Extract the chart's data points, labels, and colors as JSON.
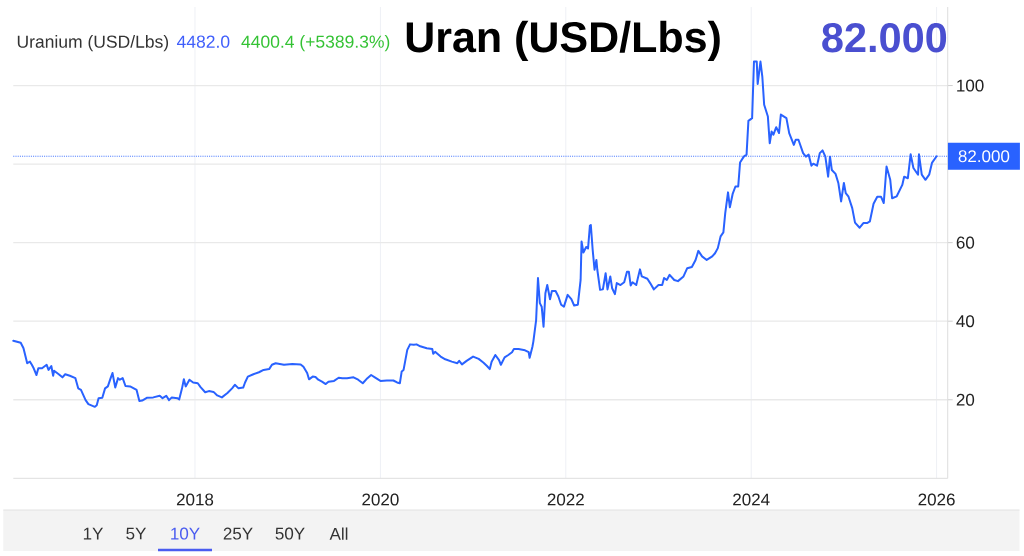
{
  "chart_data": {
    "type": "line",
    "title": "Uran (USD/Lbs)",
    "subtitle": "82.000",
    "annotations": [
      "Uranium (USD/Lbs)",
      "4482.0",
      "4400.4 (+5389.3%)",
      "1Y",
      "5Y",
      "10Y",
      "25Y",
      "50Y",
      "All"
    ],
    "x": [
      2016.04,
      2016.12,
      2016.15,
      2016.19,
      2016.22,
      2016.24,
      2016.26,
      2016.29,
      2016.31,
      2016.35,
      2016.4,
      2016.42,
      2016.45,
      2016.47,
      2016.48,
      2016.53,
      2016.57,
      2016.6,
      2016.65,
      2016.71,
      2016.74,
      2016.77,
      2016.82,
      2016.85,
      2016.92,
      2016.94,
      2016.96,
      2017.0,
      2017.03,
      2017.06,
      2017.09,
      2017.11,
      2017.14,
      2017.17,
      2017.19,
      2017.22,
      2017.25,
      2017.3,
      2017.34,
      2017.37,
      2017.4,
      2017.43,
      2017.48,
      2017.55,
      2017.62,
      2017.65,
      2017.69,
      2017.72,
      2017.75,
      2017.81,
      2017.83,
      2017.86,
      2017.88,
      2017.9,
      2017.94,
      2017.98,
      2018.03,
      2018.06,
      2018.11,
      2018.15,
      2018.2,
      2018.24,
      2018.29,
      2018.35,
      2018.4,
      2018.43,
      2018.47,
      2018.52,
      2018.54,
      2018.57,
      2018.63,
      2018.69,
      2018.74,
      2018.8,
      2018.83,
      2018.87,
      2018.96,
      2019.05,
      2019.14,
      2019.17,
      2019.21,
      2019.23,
      2019.27,
      2019.3,
      2019.33,
      2019.37,
      2019.41,
      2019.44,
      2019.5,
      2019.55,
      2019.59,
      2019.64,
      2019.71,
      2019.76,
      2019.81,
      2019.86,
      2019.9,
      2019.94,
      2020.0,
      2020.07,
      2020.14,
      2020.18,
      2020.21,
      2020.23,
      2020.25,
      2020.29,
      2020.32,
      2020.36,
      2020.39,
      2020.43,
      2020.5,
      2020.56,
      2020.57,
      2020.59,
      2020.65,
      2020.7,
      2020.77,
      2020.83,
      2020.85,
      2020.88,
      2020.93,
      2021.0,
      2021.06,
      2021.11,
      2021.15,
      2021.18,
      2021.2,
      2021.24,
      2021.28,
      2021.3,
      2021.34,
      2021.38,
      2021.42,
      2021.44,
      2021.49,
      2021.56,
      2021.6,
      2021.61,
      2021.64,
      2021.65,
      2021.68,
      2021.7,
      2021.72,
      2021.74,
      2021.76,
      2021.78,
      2021.8,
      2021.83,
      2021.85,
      2021.89,
      2021.92,
      2021.95,
      2021.98,
      2022.02,
      2022.06,
      2022.09,
      2022.13,
      2022.16,
      2022.17,
      2022.19,
      2022.22,
      2022.24,
      2022.26,
      2022.27,
      2022.29,
      2022.31,
      2022.33,
      2022.34,
      2022.37,
      2022.4,
      2022.43,
      2022.45,
      2022.48,
      2022.5,
      2022.53,
      2022.55,
      2022.59,
      2022.63,
      2022.66,
      2022.68,
      2022.7,
      2022.72,
      2022.76,
      2022.8,
      2022.82,
      2022.88,
      2022.91,
      2022.95,
      2023.0,
      2023.04,
      2023.06,
      2023.09,
      2023.12,
      2023.17,
      2023.21,
      2023.27,
      2023.31,
      2023.36,
      2023.4,
      2023.43,
      2023.47,
      2023.52,
      2023.58,
      2023.61,
      2023.64,
      2023.67,
      2023.7,
      2023.72,
      2023.75,
      2023.77,
      2023.8,
      2023.83,
      2023.86,
      2023.88,
      2023.92,
      2023.95,
      2023.97,
      2024.01,
      2024.03,
      2024.06,
      2024.07,
      2024.1,
      2024.12,
      2024.14,
      2024.18,
      2024.2,
      2024.22,
      2024.24,
      2024.27,
      2024.3,
      2024.32,
      2024.38,
      2024.41,
      2024.46,
      2024.48,
      2024.51,
      2024.56,
      2024.59,
      2024.62,
      2024.65,
      2024.67,
      2024.71,
      2024.74,
      2024.77,
      2024.8,
      2024.83,
      2024.85,
      2024.87,
      2024.91,
      2024.94,
      2024.97,
      2025.0,
      2025.02,
      2025.05,
      2025.09,
      2025.12,
      2025.17,
      2025.21,
      2025.25,
      2025.28,
      2025.32,
      2025.36,
      2025.4,
      2025.43,
      2025.46,
      2025.5,
      2025.52,
      2025.57,
      2025.63,
      2025.65,
      2025.69,
      2025.72,
      2025.75,
      2025.8,
      2025.81,
      2025.84,
      2025.88,
      2025.92,
      2025.95,
      2026.0
    ],
    "series": [
      {
        "color": "#2962ff",
        "values": [
          35.0,
          34.5,
          33.1,
          29.3,
          29.7,
          28.9,
          28.0,
          26.3,
          28.0,
          28.0,
          28.9,
          27.6,
          28.6,
          26.1,
          27.4,
          26.5,
          25.7,
          26.5,
          26.1,
          25.5,
          22.9,
          22.5,
          19.9,
          18.9,
          18.2,
          18.6,
          20.4,
          20.5,
          22.9,
          23.4,
          25.5,
          26.8,
          23.1,
          25.5,
          25.1,
          25.5,
          23.5,
          23.4,
          22.9,
          22.5,
          19.7,
          19.8,
          20.5,
          20.6,
          21.0,
          20.4,
          21.0,
          19.9,
          20.6,
          20.4,
          20.1,
          22.9,
          25.2,
          23.4,
          25.1,
          24.4,
          24.2,
          23.2,
          21.9,
          22.2,
          22.0,
          21.1,
          20.6,
          21.7,
          22.9,
          23.8,
          22.9,
          23.1,
          24.4,
          25.9,
          26.5,
          27.0,
          27.6,
          27.8,
          28.9,
          29.3,
          28.9,
          29.1,
          29.0,
          28.4,
          26.8,
          25.2,
          25.9,
          25.8,
          25.1,
          24.6,
          24.0,
          24.6,
          24.8,
          25.6,
          25.5,
          25.5,
          25.7,
          25.1,
          24.2,
          25.5,
          26.3,
          25.7,
          24.8,
          24.9,
          24.9,
          24.4,
          24.2,
          27.2,
          27.6,
          32.7,
          34.1,
          34.0,
          34.1,
          33.6,
          33.1,
          32.9,
          31.7,
          32.2,
          31.0,
          30.3,
          29.7,
          29.3,
          29.9,
          29.0,
          29.9,
          31.0,
          30.4,
          29.5,
          28.6,
          27.8,
          29.7,
          31.4,
          30.1,
          28.9,
          30.8,
          31.4,
          32.1,
          32.9,
          32.9,
          32.6,
          32.1,
          30.7,
          33.5,
          34.8,
          40.3,
          51.0,
          44.6,
          43.7,
          38.6,
          47.1,
          49.2,
          45.6,
          47.7,
          47.7,
          46.3,
          44.2,
          43.7,
          46.7,
          45.6,
          44.0,
          44.2,
          50.5,
          60.3,
          57.5,
          58.9,
          58.5,
          64.3,
          64.5,
          58.2,
          53.1,
          55.6,
          53.1,
          48.0,
          48.1,
          52.2,
          48.1,
          51.4,
          48.4,
          46.9,
          49.7,
          49.2,
          49.9,
          52.6,
          52.6,
          49.1,
          49.9,
          49.2,
          53.2,
          51.4,
          50.8,
          49.7,
          48.1,
          49.2,
          49.2,
          51.0,
          50.5,
          51.8,
          50.5,
          50.2,
          51.4,
          53.5,
          53.8,
          55.6,
          57.9,
          56.5,
          55.6,
          56.5,
          57.3,
          58.6,
          61.6,
          62.6,
          67.5,
          72.8,
          69.0,
          72.4,
          74.3,
          74.3,
          80.4,
          81.9,
          82.4,
          91.0,
          91.7,
          106.1,
          106.1,
          100.4,
          106.1,
          102.3,
          95.1,
          92.1,
          85.3,
          88.3,
          87.5,
          89.4,
          87.9,
          92.6,
          91.7,
          87.9,
          84.9,
          86.2,
          86.2,
          82.8,
          81.9,
          82.4,
          79.6,
          80.1,
          79.6,
          82.8,
          83.5,
          81.9,
          76.8,
          81.9,
          78.5,
          77.5,
          75.2,
          70.5,
          75.2,
          72.6,
          71.7,
          68.8,
          65.1,
          63.8,
          65.0,
          65.0,
          65.4,
          69.9,
          71.7,
          71.7,
          70.1,
          79.4,
          76.0,
          71.3,
          71.8,
          74.7,
          76.8,
          76.4,
          82.5,
          79.0,
          77.3,
          82.5,
          77.3,
          76.0,
          77.3,
          80.3,
          82.0
        ]
      }
    ],
    "xlim": [
      2016.04,
      2026.12
    ],
    "ylim": [
      0,
      120
    ],
    "xticks": [
      2018,
      2020,
      2022,
      2024,
      2026
    ],
    "yticks": [
      20,
      40,
      60,
      {
        "value": 80,
        "label": null
      },
      100
    ],
    "grid": true,
    "ref_lines": [
      {
        "axis": "y",
        "value": 82,
        "label": "82.000",
        "color": "#2962ff",
        "line_style": "dotted"
      }
    ]
  }
}
